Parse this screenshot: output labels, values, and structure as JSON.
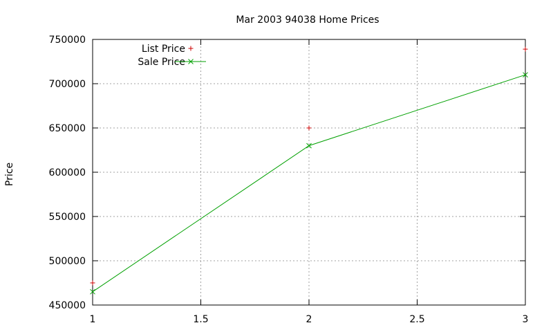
{
  "chart_data": {
    "type": "line",
    "title": "Mar 2003 94038 Home Prices",
    "xlabel": "",
    "ylabel": "Price",
    "xlim": [
      1,
      3
    ],
    "ylim": [
      450000,
      750000
    ],
    "x_ticks": [
      "1",
      "1.5",
      "2",
      "2.5",
      "3"
    ],
    "y_ticks": [
      "450000",
      "500000",
      "550000",
      "600000",
      "650000",
      "700000",
      "750000"
    ],
    "grid": true,
    "legend_position": "top-left",
    "series": [
      {
        "name": "List Price",
        "style": "points",
        "marker": "plus",
        "color": "#cc0000",
        "x": [
          1,
          2,
          3
        ],
        "values": [
          475000,
          650000,
          739000
        ]
      },
      {
        "name": "Sale Price",
        "style": "linespoints",
        "marker": "cross",
        "color": "#00a000",
        "x": [
          1,
          2,
          3
        ],
        "values": [
          465000,
          630000,
          710000
        ]
      }
    ]
  }
}
